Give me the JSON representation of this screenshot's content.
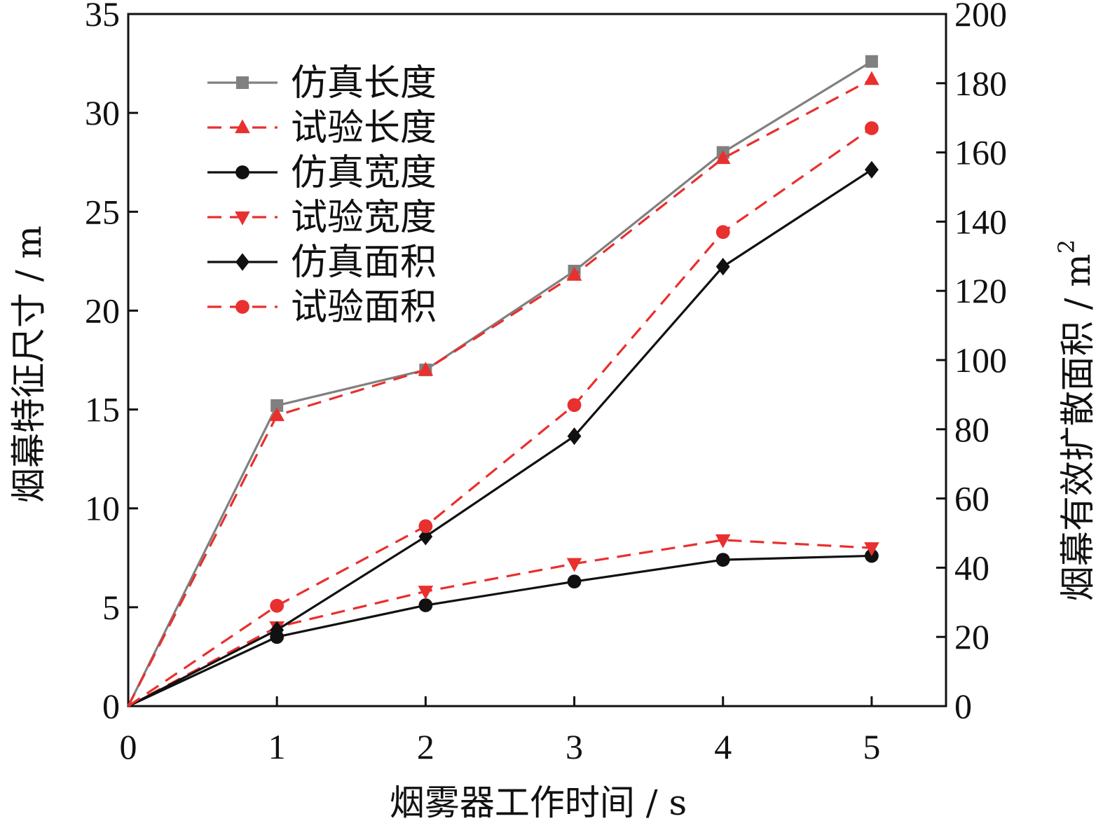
{
  "chart_data": {
    "type": "line",
    "xlabel": "烟雾器工作时间 / s",
    "ylabel_left": "烟幕特征尺寸 / m",
    "ylabel_right_text": "烟幕有效扩散面积 / m",
    "ylabel_right_sup": "2",
    "x_ticks": [
      "0",
      "1",
      "2",
      "3",
      "4",
      "5"
    ],
    "y_left_ticks": [
      "0",
      "5",
      "10",
      "15",
      "20",
      "25",
      "30",
      "35"
    ],
    "y_right_ticks": [
      "0",
      "20",
      "40",
      "60",
      "80",
      "100",
      "120",
      "140",
      "160",
      "180",
      "200"
    ],
    "xlim": [
      0,
      5.5
    ],
    "ylim_left": [
      0,
      35
    ],
    "ylim_right": [
      0,
      200
    ],
    "legend_position": "top-left",
    "series": [
      {
        "name": "仿真长度",
        "axis": "left",
        "x": [
          0,
          1,
          2,
          3,
          4,
          5
        ],
        "values": [
          0,
          15.2,
          17.0,
          22.0,
          28.0,
          32.6
        ],
        "color": "#808080",
        "dash": false,
        "marker": "square"
      },
      {
        "name": "试验长度",
        "axis": "left",
        "x": [
          0,
          1,
          2,
          3,
          4,
          5
        ],
        "values": [
          0,
          14.7,
          17.0,
          21.8,
          27.7,
          31.7
        ],
        "color": "#e8302e",
        "dash": true,
        "marker": "triangle-up"
      },
      {
        "name": "仿真宽度",
        "axis": "left",
        "x": [
          0,
          1,
          2,
          3,
          4,
          5
        ],
        "values": [
          0,
          3.5,
          5.1,
          6.3,
          7.4,
          7.6
        ],
        "color": "#111111",
        "dash": false,
        "marker": "circle"
      },
      {
        "name": "试验宽度",
        "axis": "left",
        "x": [
          0,
          1,
          2,
          3,
          4,
          5
        ],
        "values": [
          0,
          4.0,
          5.8,
          7.2,
          8.4,
          8.0
        ],
        "color": "#e8302e",
        "dash": true,
        "marker": "triangle-down"
      },
      {
        "name": "仿真面积",
        "axis": "right",
        "x": [
          0,
          1,
          2,
          3,
          4,
          5
        ],
        "values": [
          0,
          22,
          49,
          78,
          127,
          155
        ],
        "color": "#111111",
        "dash": false,
        "marker": "diamond"
      },
      {
        "name": "试验面积",
        "axis": "right",
        "x": [
          0,
          1,
          2,
          3,
          4,
          5
        ],
        "values": [
          0,
          29,
          52,
          87,
          137,
          167
        ],
        "color": "#e8302e",
        "dash": true,
        "marker": "circle"
      }
    ]
  }
}
